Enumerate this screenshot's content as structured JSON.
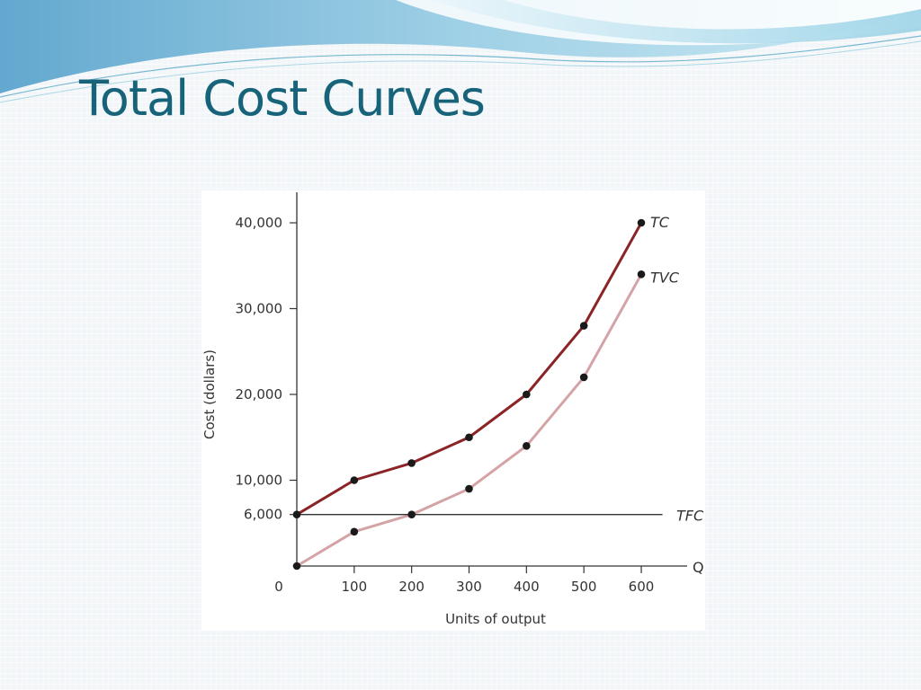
{
  "slide": {
    "title": "Total Cost Curves"
  },
  "chart_data": {
    "type": "line",
    "title": "",
    "xlabel": "Units of output",
    "ylabel": "Cost (dollars)",
    "x_axis_symbol": "Q",
    "xlim": [
      0,
      600
    ],
    "ylim": [
      0,
      40000
    ],
    "x_ticks": [
      {
        "value": 0,
        "label": "0"
      },
      {
        "value": 100,
        "label": "100"
      },
      {
        "value": 200,
        "label": "200"
      },
      {
        "value": 300,
        "label": "300"
      },
      {
        "value": 400,
        "label": "400"
      },
      {
        "value": 500,
        "label": "500"
      },
      {
        "value": 600,
        "label": "600"
      }
    ],
    "y_ticks": [
      {
        "value": 6000,
        "label": "6,000"
      },
      {
        "value": 10000,
        "label": "10,000"
      },
      {
        "value": 20000,
        "label": "20,000"
      },
      {
        "value": 30000,
        "label": "30,000"
      },
      {
        "value": 40000,
        "label": "40,000"
      }
    ],
    "grid": false,
    "legend": "none",
    "x": [
      0,
      100,
      200,
      300,
      400,
      500,
      600
    ],
    "series": [
      {
        "name": "TC",
        "color": "#8b2426",
        "values": [
          6000,
          10000,
          12000,
          15000,
          20000,
          28000,
          40000
        ],
        "markers": true
      },
      {
        "name": "TVC",
        "color": "#d4a3a5",
        "values": [
          0,
          4000,
          6000,
          9000,
          14000,
          22000,
          34000
        ],
        "markers": true
      },
      {
        "name": "TFC",
        "color": "#333333",
        "values": [
          6000,
          6000,
          6000,
          6000,
          6000,
          6000,
          6000
        ],
        "markers": false,
        "extends_past_last_point": true
      }
    ]
  }
}
